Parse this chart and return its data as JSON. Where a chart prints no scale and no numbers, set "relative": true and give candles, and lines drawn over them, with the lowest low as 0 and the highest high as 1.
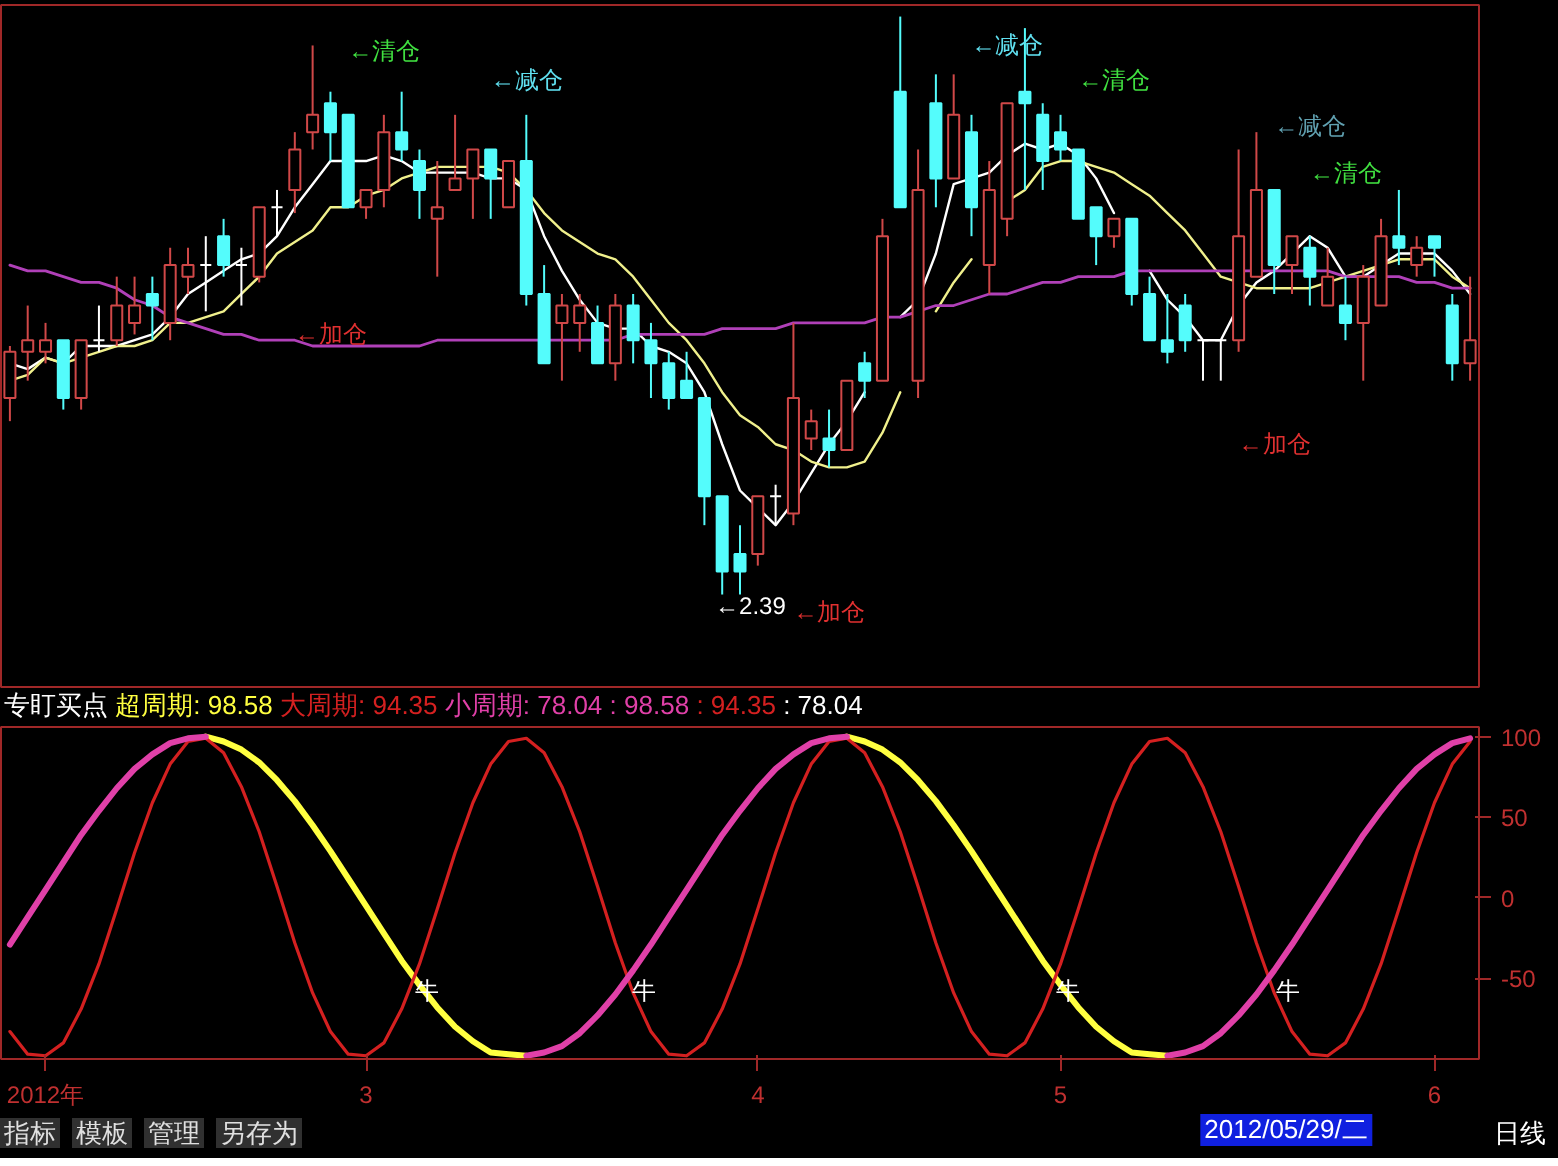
{
  "chart_data": [
    {
      "type": "candlestick",
      "relative": true,
      "categories": [
        null,
        null,
        null,
        null,
        null,
        null,
        null,
        null,
        null,
        null,
        null,
        null,
        null,
        null,
        null,
        null,
        null,
        null,
        null,
        null,
        null,
        null,
        null,
        null,
        null,
        null,
        null,
        null,
        null,
        null,
        null,
        null,
        null,
        null,
        null,
        null,
        null,
        null,
        null,
        null,
        null,
        null,
        null,
        null,
        null,
        null,
        null,
        null,
        null,
        null,
        null,
        null,
        null,
        null,
        null,
        null,
        null,
        null,
        null,
        null,
        null,
        null,
        null,
        null,
        null,
        null,
        null,
        null,
        null,
        null,
        null,
        null,
        null,
        null,
        null,
        null,
        null,
        null,
        null,
        null,
        null,
        null,
        null
      ],
      "ohlc": [
        [
          0.34,
          0.43,
          0.3,
          0.42
        ],
        [
          0.42,
          0.5,
          0.37,
          0.44
        ],
        [
          0.42,
          0.47,
          0.4,
          0.44
        ],
        [
          0.44,
          0.44,
          0.32,
          0.34
        ],
        [
          0.34,
          0.44,
          0.32,
          0.44
        ],
        [
          0.44,
          0.5,
          0.42,
          0.44
        ],
        [
          0.44,
          0.55,
          0.43,
          0.5
        ],
        [
          0.47,
          0.55,
          0.45,
          0.5
        ],
        [
          0.52,
          0.55,
          0.44,
          0.5
        ],
        [
          0.47,
          0.6,
          0.44,
          0.57
        ],
        [
          0.55,
          0.6,
          0.52,
          0.57
        ],
        [
          0.57,
          0.62,
          0.49,
          0.57
        ],
        [
          0.62,
          0.65,
          0.55,
          0.57
        ],
        [
          0.57,
          0.6,
          0.5,
          0.57
        ],
        [
          0.55,
          0.67,
          0.54,
          0.67
        ],
        [
          0.67,
          0.7,
          0.62,
          0.67
        ],
        [
          0.7,
          0.8,
          0.66,
          0.77
        ],
        [
          0.8,
          0.95,
          0.77,
          0.83
        ],
        [
          0.85,
          0.87,
          0.75,
          0.8
        ],
        [
          0.83,
          0.83,
          0.67,
          0.67
        ],
        [
          0.67,
          0.7,
          0.65,
          0.7
        ],
        [
          0.7,
          0.83,
          0.67,
          0.8
        ],
        [
          0.8,
          0.87,
          0.75,
          0.77
        ],
        [
          0.75,
          0.77,
          0.65,
          0.7
        ],
        [
          0.65,
          0.75,
          0.55,
          0.67
        ],
        [
          0.7,
          0.83,
          0.7,
          0.72
        ],
        [
          0.72,
          0.77,
          0.65,
          0.77
        ],
        [
          0.77,
          0.77,
          0.65,
          0.72
        ],
        [
          0.67,
          0.75,
          0.67,
          0.75
        ],
        [
          0.75,
          0.83,
          0.5,
          0.52
        ],
        [
          0.52,
          0.57,
          0.4,
          0.4
        ],
        [
          0.47,
          0.52,
          0.37,
          0.5
        ],
        [
          0.47,
          0.52,
          0.42,
          0.5
        ],
        [
          0.47,
          0.5,
          0.4,
          0.4
        ],
        [
          0.4,
          0.52,
          0.37,
          0.5
        ],
        [
          0.5,
          0.52,
          0.4,
          0.44
        ],
        [
          0.44,
          0.47,
          0.34,
          0.4
        ],
        [
          0.4,
          0.42,
          0.32,
          0.34
        ],
        [
          0.37,
          0.42,
          0.34,
          0.34
        ],
        [
          0.34,
          0.34,
          0.12,
          0.17
        ],
        [
          0.17,
          0.17,
          0.0,
          0.04
        ],
        [
          0.07,
          0.12,
          0.0,
          0.04
        ],
        [
          0.07,
          0.17,
          0.05,
          0.17
        ],
        [
          0.17,
          0.19,
          0.12,
          0.17
        ],
        [
          0.14,
          0.47,
          0.12,
          0.34
        ],
        [
          0.27,
          0.32,
          0.25,
          0.3
        ],
        [
          0.27,
          0.32,
          0.22,
          0.25
        ],
        [
          0.25,
          0.37,
          0.25,
          0.37
        ],
        [
          0.4,
          0.42,
          0.34,
          0.37
        ],
        [
          0.37,
          0.65,
          0.37,
          0.62
        ],
        [
          0.87,
          1.0,
          0.67,
          0.67
        ],
        [
          0.37,
          0.77,
          0.34,
          0.7
        ],
        [
          0.85,
          0.9,
          0.67,
          0.72
        ],
        [
          0.72,
          0.9,
          0.72,
          0.83
        ],
        [
          0.8,
          0.83,
          0.62,
          0.67
        ],
        [
          0.57,
          0.75,
          0.52,
          0.7
        ],
        [
          0.65,
          0.85,
          0.62,
          0.85
        ],
        [
          0.87,
          0.98,
          0.7,
          0.85
        ],
        [
          0.83,
          0.85,
          0.7,
          0.75
        ],
        [
          0.8,
          0.83,
          0.75,
          0.77
        ],
        [
          0.77,
          0.77,
          0.65,
          0.65
        ],
        [
          0.67,
          0.67,
          0.57,
          0.62
        ],
        [
          0.62,
          0.65,
          0.6,
          0.65
        ],
        [
          0.65,
          0.65,
          0.5,
          0.52
        ],
        [
          0.52,
          0.55,
          0.44,
          0.44
        ],
        [
          0.44,
          0.52,
          0.4,
          0.42
        ],
        [
          0.5,
          0.52,
          0.42,
          0.44
        ],
        [
          0.44,
          0.44,
          0.37,
          0.44
        ],
        [
          0.44,
          0.44,
          0.37,
          0.44
        ],
        [
          0.44,
          0.77,
          0.42,
          0.62
        ],
        [
          0.55,
          0.8,
          0.55,
          0.7
        ],
        [
          0.7,
          0.7,
          0.52,
          0.57
        ],
        [
          0.57,
          0.62,
          0.52,
          0.62
        ],
        [
          0.6,
          0.62,
          0.5,
          0.55
        ],
        [
          0.5,
          0.6,
          0.5,
          0.55
        ],
        [
          0.5,
          0.55,
          0.44,
          0.47
        ],
        [
          0.47,
          0.57,
          0.37,
          0.55
        ],
        [
          0.5,
          0.65,
          0.5,
          0.62
        ],
        [
          0.62,
          0.7,
          0.57,
          0.6
        ],
        [
          0.57,
          0.62,
          0.55,
          0.6
        ],
        [
          0.62,
          0.62,
          0.55,
          0.6
        ],
        [
          0.5,
          0.52,
          0.37,
          0.4
        ],
        [
          0.4,
          0.55,
          0.37,
          0.44
        ]
      ],
      "colors": [
        "#d04848",
        "#d04848",
        "#d04848",
        "#54fcfc",
        "#d04848",
        "#ffffff",
        "#d04848",
        "#d04848",
        "#54fcfc",
        "#d04848",
        "#d04848",
        "#ffffff",
        "#54fcfc",
        "#ffffff",
        "#d04848",
        "#ffffff",
        "#d04848",
        "#d04848",
        "#54fcfc",
        "#54fcfc",
        "#d04848",
        "#d04848",
        "#54fcfc",
        "#54fcfc",
        "#d04848",
        "#d04848",
        "#d04848",
        "#54fcfc",
        "#d04848",
        "#54fcfc",
        "#54fcfc",
        "#d04848",
        "#d04848",
        "#54fcfc",
        "#d04848",
        "#54fcfc",
        "#54fcfc",
        "#54fcfc",
        "#54fcfc",
        "#54fcfc",
        "#54fcfc",
        "#54fcfc",
        "#d04848",
        "#ffffff",
        "#d04848",
        "#d04848",
        "#54fcfc",
        "#d04848",
        "#54fcfc",
        "#d04848",
        "#54fcfc",
        "#d04848",
        "#54fcfc",
        "#d04848",
        "#54fcfc",
        "#d04848",
        "#d04848",
        "#54fcfc",
        "#54fcfc",
        "#54fcfc",
        "#54fcfc",
        "#54fcfc",
        "#d04848",
        "#54fcfc",
        "#54fcfc",
        "#54fcfc",
        "#54fcfc",
        "#ffffff",
        "#ffffff",
        "#d04848",
        "#d04848",
        "#54fcfc",
        "#d04848",
        "#54fcfc",
        "#d04848",
        "#54fcfc",
        "#d04848",
        "#d04848",
        "#54fcfc",
        "#d04848",
        "#54fcfc",
        "#54fcfc",
        "#d04848"
      ],
      "series": [
        {
          "type": "line",
          "color": "#ffffff",
          "values": [
            0.4,
            0.39,
            0.41,
            0.4,
            0.43,
            0.43,
            0.43,
            0.44,
            0.45,
            0.48,
            0.52,
            0.54,
            0.56,
            0.58,
            0.59,
            0.62,
            0.67,
            0.71,
            0.75,
            0.75,
            0.75,
            0.76,
            0.75,
            0.73,
            0.73,
            0.73,
            0.73,
            0.72,
            0.72,
            0.7,
            0.62,
            0.56,
            0.51,
            0.47,
            0.46,
            0.46,
            0.43,
            0.42,
            0.4,
            0.35,
            0.26,
            0.18,
            0.15,
            0.12,
            0.16,
            0.21,
            0.26,
            0.3,
            0.35,
            null,
            0.48,
            0.51,
            0.59,
            0.71,
            0.72,
            0.73,
            0.76,
            0.78,
            0.77,
            0.78,
            0.76,
            0.72,
            0.66,
            null,
            0.56,
            0.51,
            0.48,
            0.44,
            0.44,
            0.5,
            0.54,
            0.56,
            0.59,
            0.62,
            0.6,
            0.55,
            0.55,
            0.57,
            0.59,
            0.59,
            0.59,
            0.56,
            0.52
          ]
        },
        {
          "type": "line",
          "color": "#f0f08c",
          "values": [
            0.37,
            0.38,
            0.41,
            0.4,
            0.41,
            0.42,
            0.43,
            0.43,
            0.44,
            0.47,
            0.47,
            0.48,
            0.49,
            0.52,
            0.55,
            0.59,
            0.61,
            0.63,
            0.67,
            0.67,
            0.69,
            0.7,
            0.72,
            0.73,
            0.74,
            0.74,
            0.74,
            0.74,
            0.73,
            0.7,
            0.66,
            0.63,
            0.61,
            0.59,
            0.58,
            0.55,
            0.51,
            0.47,
            0.44,
            0.4,
            0.35,
            0.31,
            0.29,
            0.26,
            0.25,
            0.23,
            0.22,
            0.22,
            0.23,
            0.28,
            0.35,
            null,
            0.49,
            0.54,
            0.58,
            null,
            0.68,
            0.7,
            0.74,
            0.75,
            0.75,
            0.74,
            0.73,
            0.71,
            0.69,
            0.66,
            0.63,
            0.59,
            0.55,
            0.54,
            0.53,
            0.53,
            0.53,
            0.53,
            0.54,
            0.55,
            0.56,
            0.57,
            0.58,
            0.58,
            0.58,
            0.55,
            0.53
          ]
        },
        {
          "type": "line",
          "color": "#b040b8",
          "values": [
            0.57,
            0.56,
            0.56,
            0.55,
            0.54,
            0.54,
            0.53,
            0.51,
            0.5,
            0.48,
            0.47,
            0.46,
            0.45,
            0.45,
            0.44,
            0.44,
            0.44,
            0.43,
            0.43,
            0.43,
            0.43,
            0.43,
            0.43,
            0.43,
            0.44,
            0.44,
            0.44,
            0.44,
            0.44,
            0.44,
            0.44,
            0.44,
            0.44,
            0.44,
            0.44,
            0.45,
            0.45,
            0.45,
            0.45,
            0.45,
            0.46,
            0.46,
            0.46,
            0.46,
            0.47,
            0.47,
            0.47,
            0.47,
            0.47,
            0.48,
            0.48,
            0.49,
            0.5,
            0.5,
            0.51,
            0.52,
            0.52,
            0.53,
            0.54,
            0.54,
            0.55,
            0.55,
            0.55,
            0.56,
            0.56,
            0.56,
            0.56,
            0.56,
            0.56,
            0.56,
            0.56,
            0.56,
            0.56,
            0.56,
            0.56,
            0.55,
            0.55,
            0.55,
            0.55,
            0.54,
            0.54,
            0.53,
            0.53
          ]
        }
      ],
      "annotations": [
        "←清仓",
        "←减仓",
        "←加仓",
        "←2.39",
        "←加仓",
        "←减仓",
        "←清仓",
        "←减仓",
        "←清仓",
        "←加仓"
      ]
    },
    {
      "type": "line",
      "title": "专盯买点",
      "legend": "top left",
      "categories": [
        null,
        null,
        "2012年",
        null,
        null,
        null,
        null,
        null,
        null,
        null,
        null,
        null,
        null,
        null,
        null,
        null,
        null,
        null,
        null,
        null,
        "3",
        null,
        null,
        null,
        null,
        null,
        null,
        null,
        null,
        null,
        null,
        null,
        null,
        null,
        null,
        null,
        null,
        null,
        null,
        null,
        null,
        null,
        "4",
        null,
        null,
        null,
        null,
        null,
        null,
        null,
        null,
        null,
        null,
        null,
        null,
        null,
        null,
        null,
        null,
        "5",
        null,
        null,
        null,
        null,
        null,
        null,
        null,
        null,
        null,
        null,
        null,
        null,
        null,
        null,
        null,
        null,
        null,
        null,
        null,
        null,
        "6",
        null,
        null
      ],
      "ylim": [
        -100,
        106
      ],
      "yticks": [
        100,
        50,
        0,
        -50
      ],
      "series": [
        {
          "name": "超周期: 98.58",
          "color": "#ffff40",
          "values": [
            null,
            null,
            null,
            null,
            null,
            null,
            null,
            null,
            null,
            null,
            null,
            100,
            97,
            92,
            84,
            73,
            60,
            45,
            29,
            12,
            -5,
            -22,
            -39,
            -54,
            -68,
            -80,
            -89,
            -96,
            -97,
            -98,
            null,
            null,
            null,
            null,
            null,
            null,
            null,
            null,
            null,
            null,
            null,
            null,
            null,
            null,
            null,
            null,
            null,
            100,
            97,
            92,
            84,
            73,
            60,
            45,
            29,
            12,
            -5,
            -22,
            -39,
            -54,
            -68,
            -80,
            -89,
            -96,
            -97,
            -98,
            null,
            null,
            null,
            null,
            null,
            null,
            null,
            null,
            null,
            null,
            null,
            null,
            null,
            null,
            null,
            null,
            null
          ]
        },
        {
          "name": "大周期: 94.35",
          "color": "#d42020",
          "values": [
            -83,
            -97,
            -98,
            -90,
            -69,
            -41,
            -7,
            28,
            59,
            83,
            97,
            99,
            90,
            69,
            41,
            7,
            -28,
            -59,
            -83,
            -97,
            -98,
            -90,
            -69,
            -41,
            -7,
            28,
            59,
            83,
            97,
            99,
            90,
            69,
            41,
            7,
            -28,
            -59,
            -83,
            -97,
            -98,
            -90,
            -69,
            -41,
            -7,
            28,
            59,
            83,
            97,
            99,
            90,
            69,
            41,
            7,
            -28,
            -59,
            -83,
            -97,
            -98,
            -90,
            -69,
            -41,
            -7,
            28,
            59,
            83,
            97,
            99,
            90,
            69,
            41,
            7,
            -28,
            -59,
            -83,
            -97,
            -98,
            -90,
            -69,
            -41,
            -7,
            28,
            59,
            83,
            97
          ]
        },
        {
          "name": "小周期: 78.04",
          "color": "#e040a8",
          "values": [
            -29,
            -12,
            5,
            22,
            39,
            54,
            68,
            80,
            89,
            96,
            99,
            100,
            null,
            null,
            null,
            null,
            null,
            null,
            null,
            null,
            null,
            null,
            null,
            null,
            null,
            null,
            null,
            null,
            null,
            -98,
            -96,
            -92,
            -84,
            -73,
            -60,
            -45,
            -29,
            -12,
            5,
            22,
            39,
            54,
            68,
            80,
            89,
            96,
            99,
            100,
            null,
            null,
            null,
            null,
            null,
            null,
            null,
            null,
            null,
            null,
            null,
            null,
            null,
            null,
            null,
            null,
            null,
            -98,
            -96,
            -92,
            -84,
            -73,
            -60,
            -45,
            -29,
            -12,
            5,
            22,
            39,
            54,
            68,
            80,
            89,
            96,
            99
          ]
        }
      ],
      "annotations": [
        ": 98.58",
        ": 94.35",
        ": 78.04",
        "牛",
        "牛",
        "牛",
        "牛",
        "2012/05/29/二",
        "日线",
        "指标",
        "模板",
        "管理",
        "另存为"
      ]
    }
  ]
}
